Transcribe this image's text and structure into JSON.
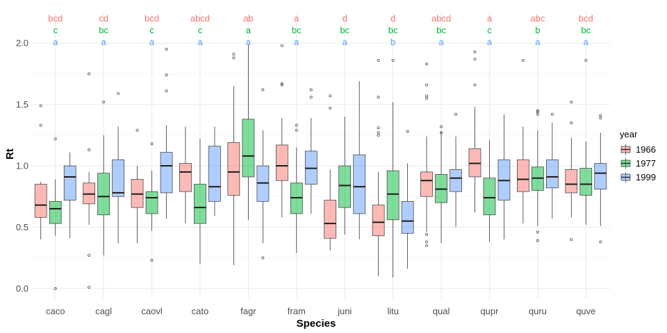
{
  "chart_data": {
    "type": "boxplot",
    "title": "",
    "xlabel": "Species",
    "ylabel": "Rt",
    "ylim": [
      -0.08,
      2.25
    ],
    "yticks": [
      0.0,
      0.5,
      1.0,
      1.5,
      2.0
    ],
    "ytick_labels": [
      "0.0",
      "0.5",
      "1.0",
      "1.5",
      "2.0"
    ],
    "grid": true,
    "legend": {
      "title": "year",
      "position": "right",
      "entries": [
        "1966",
        "1977",
        "1999"
      ]
    },
    "categories": [
      "caco",
      "cagl",
      "caovl",
      "cato",
      "fagr",
      "fram",
      "juni",
      "litu",
      "qual",
      "qupr",
      "quru",
      "quve"
    ],
    "letter_colors": [
      "#F8766D",
      "#00BA38",
      "#619CFF"
    ],
    "letters": [
      [
        "bcd",
        "c",
        "a"
      ],
      [
        "cd",
        "bc",
        "a"
      ],
      [
        "bcd",
        "c",
        "a"
      ],
      [
        "abcd",
        "c",
        "a"
      ],
      [
        "ab",
        "a",
        "a"
      ],
      [
        "a",
        "bc",
        "a"
      ],
      [
        "d",
        "bc",
        "a"
      ],
      [
        "d",
        "bc",
        "b"
      ],
      [
        "abcd",
        "bc",
        "a"
      ],
      [
        "a",
        "c",
        "a"
      ],
      [
        "abc",
        "b",
        "a"
      ],
      [
        "bcd",
        "bc",
        "a"
      ]
    ],
    "series": [
      {
        "name": "1966",
        "fill": "#F8766D",
        "boxes": [
          {
            "lw": 0.4,
            "q1": 0.58,
            "med": 0.68,
            "q3": 0.85,
            "uw": 0.87,
            "out": [
              1.49,
              1.33
            ]
          },
          {
            "lw": 0.52,
            "q1": 0.69,
            "med": 0.77,
            "q3": 0.86,
            "uw": 0.95,
            "out": [
              1.75,
              1.13,
              0.27,
              0.01
            ]
          },
          {
            "lw": 0.37,
            "q1": 0.66,
            "med": 0.77,
            "q3": 0.89,
            "uw": 1.0,
            "out": [
              1.29
            ]
          },
          {
            "lw": 0.53,
            "q1": 0.79,
            "med": 0.95,
            "q3": 1.02,
            "uw": 1.32,
            "out": []
          },
          {
            "lw": 0.19,
            "q1": 0.76,
            "med": 0.95,
            "q3": 1.19,
            "uw": 1.65,
            "out": [
              1.91,
              1.88
            ]
          },
          {
            "lw": 0.58,
            "q1": 0.88,
            "med": 1.0,
            "q3": 1.17,
            "uw": 1.39,
            "out": [
              1.98,
              1.67,
              1.66
            ]
          },
          {
            "lw": 0.31,
            "q1": 0.41,
            "med": 0.53,
            "q3": 0.72,
            "uw": 0.97,
            "out": [
              1.57,
              1.47
            ]
          },
          {
            "lw": 0.1,
            "q1": 0.43,
            "med": 0.54,
            "q3": 0.68,
            "uw": 0.95,
            "out": [
              1.86,
              1.56,
              1.31,
              1.27,
              1.25
            ]
          },
          {
            "lw": 0.46,
            "q1": 0.75,
            "med": 0.88,
            "q3": 0.95,
            "uw": 1.24,
            "out": [
              1.83,
              1.66,
              1.57,
              1.55,
              0.44,
              0.38,
              0.35
            ]
          },
          {
            "lw": 0.62,
            "q1": 0.91,
            "med": 1.02,
            "q3": 1.14,
            "uw": 1.48,
            "out": [
              1.93,
              1.87,
              1.66
            ]
          },
          {
            "lw": 0.53,
            "q1": 0.79,
            "med": 0.89,
            "q3": 1.05,
            "uw": 1.32,
            "out": [
              1.86
            ]
          },
          {
            "lw": 0.58,
            "q1": 0.78,
            "med": 0.85,
            "q3": 0.97,
            "uw": 1.23,
            "out": [
              1.52,
              1.35,
              0.4
            ]
          }
        ]
      },
      {
        "name": "1977",
        "fill": "#00BA38",
        "boxes": [
          {
            "lw": 0.43,
            "q1": 0.53,
            "med": 0.65,
            "q3": 0.71,
            "uw": 0.89,
            "out": [
              1.22,
              0.0
            ]
          },
          {
            "lw": 0.27,
            "q1": 0.6,
            "med": 0.75,
            "q3": 0.94,
            "uw": 1.25,
            "out": [
              1.52
            ]
          },
          {
            "lw": 0.47,
            "q1": 0.61,
            "med": 0.74,
            "q3": 0.79,
            "uw": 0.96,
            "out": [
              1.18,
              0.23
            ]
          },
          {
            "lw": 0.2,
            "q1": 0.53,
            "med": 0.66,
            "q3": 0.85,
            "uw": 1.22,
            "out": []
          },
          {
            "lw": 0.56,
            "q1": 0.91,
            "med": 1.08,
            "q3": 1.38,
            "uw": 1.99,
            "out": []
          },
          {
            "lw": 0.29,
            "q1": 0.61,
            "med": 0.74,
            "q3": 0.86,
            "uw": 1.15,
            "out": [
              1.33,
              1.29
            ]
          },
          {
            "lw": 0.44,
            "q1": 0.66,
            "med": 0.84,
            "q3": 1.0,
            "uw": 1.4,
            "out": []
          },
          {
            "lw": 0.09,
            "q1": 0.56,
            "med": 0.77,
            "q3": 0.96,
            "uw": 1.52,
            "out": [
              1.86
            ]
          },
          {
            "lw": 0.37,
            "q1": 0.7,
            "med": 0.81,
            "q3": 0.93,
            "uw": 1.28,
            "out": [
              1.32,
              1.27
            ]
          },
          {
            "lw": 0.38,
            "q1": 0.6,
            "med": 0.74,
            "q3": 0.9,
            "uw": 1.21,
            "out": []
          },
          {
            "lw": 0.51,
            "q1": 0.8,
            "med": 0.9,
            "q3": 0.99,
            "uw": 1.29,
            "out": [
              1.45,
              1.44,
              1.42,
              0.46,
              0.39
            ]
          },
          {
            "lw": 0.52,
            "q1": 0.76,
            "med": 0.85,
            "q3": 0.98,
            "uw": 1.2,
            "out": [
              1.86
            ]
          }
        ]
      },
      {
        "name": "1999",
        "fill": "#619CFF",
        "boxes": [
          {
            "lw": 0.41,
            "q1": 0.72,
            "med": 0.91,
            "q3": 1.0,
            "uw": 1.11,
            "out": []
          },
          {
            "lw": 0.37,
            "q1": 0.75,
            "med": 0.78,
            "q3": 1.05,
            "uw": 1.32,
            "out": [
              1.59
            ]
          },
          {
            "lw": 0.57,
            "q1": 0.78,
            "med": 1.0,
            "q3": 1.11,
            "uw": 1.33,
            "out": [
              1.95,
              1.74,
              1.61
            ]
          },
          {
            "lw": 0.59,
            "q1": 0.71,
            "med": 0.83,
            "q3": 1.16,
            "uw": 1.32,
            "out": []
          },
          {
            "lw": 0.37,
            "q1": 0.71,
            "med": 0.86,
            "q3": 1.0,
            "uw": 1.29,
            "out": [
              1.62,
              0.25
            ]
          },
          {
            "lw": 0.61,
            "q1": 0.85,
            "med": 0.98,
            "q3": 1.12,
            "uw": 1.39,
            "out": [
              1.62,
              1.56
            ]
          },
          {
            "lw": 0.4,
            "q1": 0.61,
            "med": 0.83,
            "q3": 1.09,
            "uw": 1.69,
            "out": []
          },
          {
            "lw": 0.16,
            "q1": 0.45,
            "med": 0.55,
            "q3": 0.71,
            "uw": 1.02,
            "out": [
              1.28
            ]
          },
          {
            "lw": 0.5,
            "q1": 0.79,
            "med": 0.9,
            "q3": 0.97,
            "uw": 1.24,
            "out": [
              1.42
            ]
          },
          {
            "lw": 0.4,
            "q1": 0.72,
            "med": 0.88,
            "q3": 1.05,
            "uw": 1.42,
            "out": []
          },
          {
            "lw": 0.57,
            "q1": 0.82,
            "med": 0.91,
            "q3": 1.05,
            "uw": 1.35,
            "out": [
              1.42
            ]
          },
          {
            "lw": 0.51,
            "q1": 0.81,
            "med": 0.94,
            "q3": 1.02,
            "uw": 1.27,
            "out": [
              1.41,
              1.39,
              0.38
            ]
          }
        ]
      }
    ]
  }
}
